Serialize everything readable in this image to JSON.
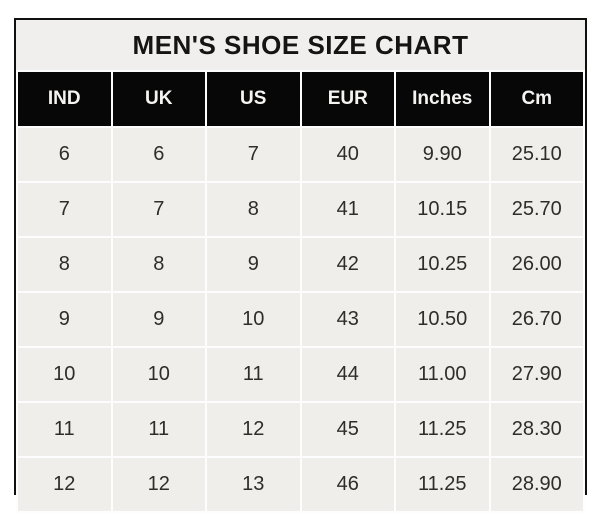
{
  "title": "MEN'S SHOE SIZE CHART",
  "table": {
    "headers": [
      "IND",
      "UK",
      "US",
      "EUR",
      "Inches",
      "Cm"
    ],
    "rows": [
      [
        "6",
        "6",
        "7",
        "40",
        "9.90",
        "25.10"
      ],
      [
        "7",
        "7",
        "8",
        "41",
        "10.15",
        "25.70"
      ],
      [
        "8",
        "8",
        "9",
        "42",
        "10.25",
        "26.00"
      ],
      [
        "9",
        "9",
        "10",
        "43",
        "10.50",
        "26.70"
      ],
      [
        "10",
        "10",
        "11",
        "44",
        "11.00",
        "27.90"
      ],
      [
        "11",
        "11",
        "12",
        "45",
        "11.25",
        "28.30"
      ],
      [
        "12",
        "12",
        "13",
        "46",
        "11.25",
        "28.90"
      ]
    ]
  },
  "chart_data": {
    "type": "table",
    "title": "MEN'S SHOE SIZE CHART",
    "columns": [
      "IND",
      "UK",
      "US",
      "EUR",
      "Inches",
      "Cm"
    ],
    "rows": [
      [
        6,
        6,
        7,
        40,
        9.9,
        25.1
      ],
      [
        7,
        7,
        8,
        41,
        10.15,
        25.7
      ],
      [
        8,
        8,
        9,
        42,
        10.25,
        26.0
      ],
      [
        9,
        9,
        10,
        43,
        10.5,
        26.7
      ],
      [
        10,
        10,
        11,
        44,
        11.0,
        27.9
      ],
      [
        11,
        11,
        12,
        45,
        11.25,
        28.3
      ],
      [
        12,
        12,
        13,
        46,
        11.25,
        28.9
      ]
    ],
    "layout_hints": {
      "header_style": "black band with white bold text",
      "body_style": "light gray cells with white gridlines",
      "outer_border": "black"
    }
  },
  "colors": {
    "page_bg": "#ffffff",
    "title_bg": "#f0efed",
    "header_bg": "#070707",
    "header_text": "#f5f4f2",
    "cell_bg": "#efeeeb",
    "cell_text": "#2e2d2b",
    "gridline": "#fdfdfd",
    "outer_border": "#101010"
  }
}
